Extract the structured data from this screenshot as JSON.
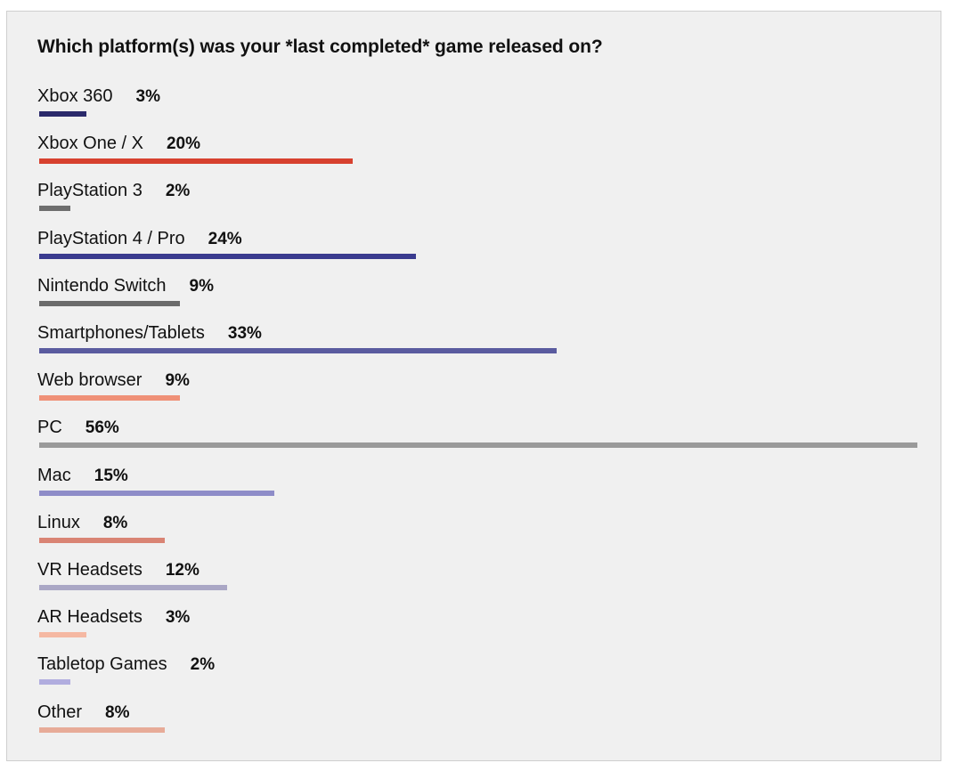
{
  "chart_data": {
    "type": "bar",
    "orientation": "horizontal",
    "title": "Which platform(s) was your *last completed* game released on?",
    "xlim": [
      0,
      56
    ],
    "grid": false,
    "categories": [
      "Xbox 360",
      "Xbox One / X",
      "PlayStation 3",
      "PlayStation 4 / Pro",
      "Nintendo Switch",
      "Smartphones/Tablets",
      "Web browser",
      "PC",
      "Mac",
      "Linux",
      "VR Headsets",
      "AR Headsets",
      "Tabletop Games",
      "Other"
    ],
    "values": [
      3,
      20,
      2,
      24,
      9,
      33,
      9,
      56,
      15,
      8,
      12,
      3,
      2,
      8
    ],
    "value_labels": [
      "3%",
      "20%",
      "2%",
      "24%",
      "9%",
      "33%",
      "9%",
      "56%",
      "15%",
      "8%",
      "12%",
      "3%",
      "2%",
      "8%"
    ],
    "colors": [
      "#2b2a6b",
      "#d7412f",
      "#6e6e6e",
      "#3a3b8f",
      "#6b6b6b",
      "#5a5b9f",
      "#ef9077",
      "#9a9a9a",
      "#8e8cc8",
      "#d98474",
      "#aaa7c5",
      "#f5b8a2",
      "#b1addf",
      "#e7ab98"
    ]
  }
}
